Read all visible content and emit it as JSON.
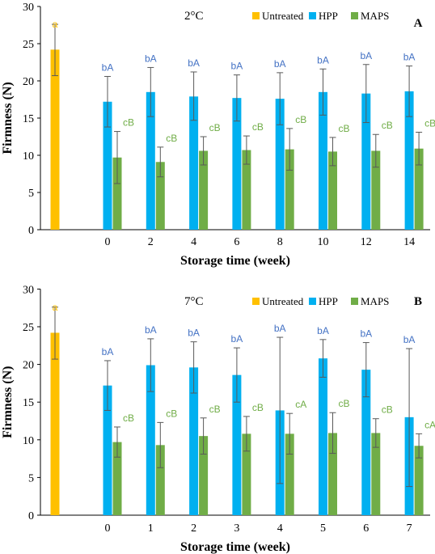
{
  "colors": {
    "untreated": "#FFC000",
    "hpp": "#00B0F0",
    "maps": "#70AD47",
    "hpp_label": "#4472C4",
    "maps_label": "#70AD47",
    "untreated_label": "#FFC000",
    "error_bar": "#595959"
  },
  "chart_data": [
    {
      "type": "bar",
      "panel_letter": "A",
      "annotation": "2°C",
      "xlabel": "Storage time (week)",
      "ylabel": "Firmness  (N)",
      "ylim": [
        0,
        30
      ],
      "yticks": [
        0,
        5,
        10,
        15,
        20,
        25,
        30
      ],
      "legend": {
        "placement": "top-right",
        "entries": [
          "Untreated",
          "HPP",
          "MAPS"
        ]
      },
      "untreated": {
        "name": "Untreated",
        "value": 24.2,
        "err_high": 27.6,
        "err_low": 20.7,
        "label": "a"
      },
      "categories": [
        "0",
        "2",
        "4",
        "6",
        "8",
        "10",
        "12",
        "14"
      ],
      "series": [
        {
          "name": "HPP",
          "values": [
            17.2,
            18.5,
            17.9,
            17.7,
            17.6,
            18.5,
            18.3,
            18.6
          ],
          "err_high": [
            20.6,
            21.8,
            21.2,
            20.8,
            21.1,
            21.6,
            22.2,
            22.0
          ],
          "err_low": [
            13.8,
            15.2,
            14.7,
            14.6,
            14.1,
            15.4,
            14.4,
            15.2
          ],
          "labels": [
            "bA",
            "bA",
            "bA",
            "bA",
            "bA",
            "bA",
            "bA",
            "bA"
          ]
        },
        {
          "name": "MAPS",
          "values": [
            9.7,
            9.1,
            10.6,
            10.7,
            10.8,
            10.5,
            10.6,
            10.9
          ],
          "err_high": [
            13.2,
            11.1,
            12.5,
            12.6,
            13.6,
            12.4,
            12.8,
            13.1
          ],
          "err_low": [
            6.2,
            7.1,
            8.7,
            8.8,
            8.0,
            8.6,
            8.4,
            8.7
          ],
          "labels": [
            "cB",
            "cB",
            "cB",
            "cB",
            "cB",
            "cB",
            "cB",
            "cB"
          ]
        }
      ]
    },
    {
      "type": "bar",
      "panel_letter": "B",
      "annotation": "7°C",
      "xlabel": "Storage time (week)",
      "ylabel": "Firmness  (N)",
      "ylim": [
        0,
        30
      ],
      "yticks": [
        0,
        5,
        10,
        15,
        20,
        25,
        30
      ],
      "legend": {
        "placement": "top-right",
        "entries": [
          "Untreated",
          "HPP",
          "MAPS"
        ]
      },
      "untreated": {
        "name": "Untreated",
        "value": 24.2,
        "err_high": 27.6,
        "err_low": 20.7,
        "label": "a"
      },
      "categories": [
        "0",
        "1",
        "2",
        "3",
        "4",
        "5",
        "6",
        "7"
      ],
      "series": [
        {
          "name": "HPP",
          "values": [
            17.2,
            19.9,
            19.6,
            18.6,
            13.9,
            20.8,
            19.3,
            13.0
          ],
          "err_high": [
            20.5,
            23.4,
            23.0,
            22.2,
            23.6,
            23.3,
            22.9,
            22.1
          ],
          "err_low": [
            13.9,
            16.4,
            16.2,
            15.0,
            4.2,
            18.3,
            15.7,
            3.8
          ],
          "labels": [
            "bA",
            "bA",
            "bA",
            "bA",
            "bA",
            "bA",
            "bA",
            "bA"
          ]
        },
        {
          "name": "MAPS",
          "values": [
            9.7,
            9.3,
            10.5,
            10.8,
            10.8,
            10.9,
            10.9,
            9.2
          ],
          "err_high": [
            11.7,
            12.3,
            12.9,
            13.1,
            13.5,
            13.6,
            12.8,
            10.8
          ],
          "err_low": [
            7.7,
            6.3,
            8.1,
            8.5,
            8.1,
            8.2,
            9.0,
            7.6
          ],
          "labels": [
            "cB",
            "cB",
            "cB",
            "cB",
            "cA",
            "cB",
            "cB",
            "cA"
          ]
        }
      ]
    }
  ]
}
